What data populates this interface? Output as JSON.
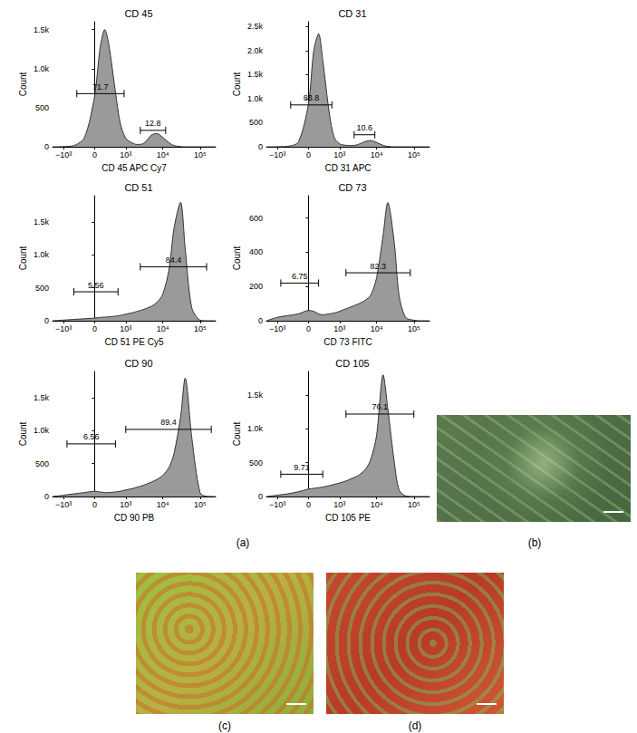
{
  "chart_data": [
    {
      "type": "area",
      "title": "CD 45",
      "x_label": "CD 45 APC Cy7",
      "y_label": "Count",
      "color": "#9a9a9a",
      "grid": false,
      "x": [
        -2000,
        -1000,
        -500,
        -200,
        0,
        100,
        200,
        300,
        500,
        700,
        1000,
        1500,
        2000,
        3000,
        5000,
        7000,
        10000,
        15000,
        20000,
        30000,
        40000,
        60000,
        100000,
        150000,
        262144
      ],
      "values": [
        0,
        3,
        15,
        120,
        650,
        1250,
        1500,
        1300,
        700,
        300,
        110,
        50,
        30,
        40,
        150,
        170,
        120,
        50,
        15,
        3,
        0,
        0,
        0,
        0,
        0
      ],
      "xlim": [
        -2000,
        262144
      ],
      "xticks": [
        {
          "value": -1000,
          "label": "−10³"
        },
        0,
        {
          "value": 1000,
          "label": "10³"
        },
        {
          "value": 10000,
          "label": "10⁴"
        },
        {
          "value": 100000,
          "label": "10⁵"
        }
      ],
      "ylim": [
        0,
        1600
      ],
      "yticks": [
        0,
        500,
        {
          "value": 1000,
          "label": "1.0k"
        },
        {
          "value": 1500,
          "label": "1.5k"
        }
      ],
      "gates": [
        {
          "x_range": [
            -400,
            900
          ],
          "y": 680,
          "value": 71.7
        },
        {
          "x_range": [
            2500,
            12000
          ],
          "y": 210,
          "value": 12.8
        }
      ]
    },
    {
      "type": "area",
      "title": "CD 31",
      "x_label": "CD 31 APC",
      "y_label": "Count",
      "color": "#9a9a9a",
      "grid": false,
      "x": [
        -2000,
        -1000,
        -500,
        -200,
        0,
        100,
        200,
        300,
        500,
        700,
        1000,
        1500,
        2000,
        3000,
        5000,
        7000,
        10000,
        15000,
        20000,
        30000,
        40000,
        60000,
        100000,
        150000,
        262144
      ],
      "values": [
        0,
        2,
        10,
        100,
        900,
        2000,
        2350,
        1800,
        700,
        200,
        60,
        30,
        25,
        40,
        110,
        130,
        90,
        30,
        8,
        0,
        0,
        0,
        0,
        0,
        0
      ],
      "xlim": [
        -2000,
        262144
      ],
      "xticks": [
        {
          "value": -1000,
          "label": "−10³"
        },
        0,
        {
          "value": 1000,
          "label": "10³"
        },
        {
          "value": 10000,
          "label": "10⁴"
        },
        {
          "value": 100000,
          "label": "10⁵"
        }
      ],
      "ylim": [
        0,
        2600
      ],
      "yticks": [
        0,
        500,
        {
          "value": 1000,
          "label": "1.0k"
        },
        {
          "value": 1500,
          "label": "1.5k"
        },
        {
          "value": 2000,
          "label": "2.0k"
        },
        {
          "value": 2500,
          "label": "2.5k"
        }
      ],
      "gates": [
        {
          "x_range": [
            -400,
            600
          ],
          "y": 870,
          "value": 83.8
        },
        {
          "x_range": [
            2500,
            9000
          ],
          "y": 250,
          "value": 10.6
        }
      ]
    },
    {
      "type": "area",
      "title": "CD 51",
      "x_label": "CD 51 PE Cy5",
      "y_label": "Count",
      "color": "#9a9a9a",
      "grid": false,
      "x": [
        -2000,
        -1000,
        -500,
        -200,
        0,
        100,
        200,
        300,
        500,
        700,
        1000,
        1500,
        2000,
        3000,
        5000,
        7000,
        10000,
        15000,
        20000,
        30000,
        40000,
        60000,
        100000,
        150000,
        262144
      ],
      "values": [
        0,
        10,
        20,
        30,
        40,
        50,
        55,
        60,
        70,
        80,
        100,
        120,
        140,
        170,
        220,
        280,
        400,
        800,
        1400,
        1800,
        1100,
        200,
        10,
        0,
        0
      ],
      "xlim": [
        -2000,
        262144
      ],
      "xticks": [
        {
          "value": -1000,
          "label": "−10³"
        },
        0,
        {
          "value": 1000,
          "label": "10³"
        },
        {
          "value": 10000,
          "label": "10⁴"
        },
        {
          "value": 100000,
          "label": "10⁵"
        }
      ],
      "ylim": [
        0,
        1900
      ],
      "yticks": [
        0,
        500,
        {
          "value": 1000,
          "label": "1.0k"
        },
        {
          "value": 1500,
          "label": "1.5k"
        }
      ],
      "gates": [
        {
          "x_range": [
            2500,
            150000
          ],
          "y": 820,
          "value": 84.4
        },
        {
          "x_range": [
            -500,
            600
          ],
          "y": 440,
          "value": 5.56
        }
      ]
    },
    {
      "type": "area",
      "title": "CD 73",
      "x_label": "CD 73 FITC",
      "y_label": "Count",
      "color": "#9a9a9a",
      "grid": false,
      "x": [
        -2000,
        -1000,
        -500,
        -200,
        0,
        100,
        200,
        300,
        500,
        700,
        1000,
        1500,
        2000,
        3000,
        5000,
        7000,
        10000,
        15000,
        20000,
        30000,
        40000,
        60000,
        100000,
        150000,
        262144
      ],
      "values": [
        0,
        20,
        30,
        40,
        60,
        55,
        40,
        35,
        40,
        45,
        55,
        70,
        80,
        95,
        120,
        150,
        250,
        500,
        690,
        450,
        150,
        20,
        3,
        0,
        0
      ],
      "xlim": [
        -2000,
        262144
      ],
      "xticks": [
        {
          "value": -1000,
          "label": "−10³"
        },
        0,
        {
          "value": 1000,
          "label": "10³"
        },
        {
          "value": 10000,
          "label": "10⁴"
        },
        {
          "value": 100000,
          "label": "10⁵"
        }
      ],
      "ylim": [
        0,
        730
      ],
      "yticks": [
        0,
        200,
        400,
        600
      ],
      "gates": [
        {
          "x_range": [
            1500,
            80000
          ],
          "y": 280,
          "value": 82.3
        },
        {
          "x_range": [
            -800,
            200
          ],
          "y": 220,
          "value": 6.75
        }
      ]
    },
    {
      "type": "area",
      "title": "CD 90",
      "x_label": "CD 90 PB",
      "y_label": "Count",
      "color": "#9a9a9a",
      "grid": false,
      "x": [
        -2000,
        -1000,
        -500,
        -200,
        0,
        100,
        200,
        300,
        500,
        700,
        1000,
        1500,
        2000,
        3000,
        5000,
        7000,
        10000,
        15000,
        20000,
        30000,
        40000,
        60000,
        100000,
        150000,
        262144
      ],
      "values": [
        0,
        20,
        40,
        60,
        80,
        70,
        60,
        60,
        70,
        80,
        100,
        120,
        140,
        170,
        220,
        260,
        320,
        450,
        650,
        1200,
        1800,
        900,
        60,
        2,
        0
      ],
      "xlim": [
        -2000,
        262144
      ],
      "xticks": [
        {
          "value": -1000,
          "label": "−10³"
        },
        0,
        {
          "value": 1000,
          "label": "10³"
        },
        {
          "value": 10000,
          "label": "10⁴"
        },
        {
          "value": 100000,
          "label": "10⁵"
        }
      ],
      "ylim": [
        0,
        1900
      ],
      "yticks": [
        0,
        500,
        {
          "value": 1000,
          "label": "1.0k"
        },
        {
          "value": 1500,
          "label": "1.5k"
        }
      ],
      "gates": [
        {
          "x_range": [
            1000,
            200000
          ],
          "y": 1020,
          "value": 89.4
        },
        {
          "x_range": [
            -800,
            500
          ],
          "y": 800,
          "value": 6.56
        }
      ]
    },
    {
      "type": "area",
      "title": "CD 105",
      "x_label": "CD 105 PE",
      "y_label": "Count",
      "color": "#9a9a9a",
      "grid": false,
      "x": [
        -2000,
        -1000,
        -500,
        -200,
        0,
        100,
        200,
        300,
        500,
        700,
        1000,
        1500,
        2000,
        3000,
        5000,
        7000,
        10000,
        15000,
        20000,
        30000,
        40000,
        60000,
        100000,
        150000,
        262144
      ],
      "values": [
        0,
        20,
        40,
        70,
        110,
        120,
        130,
        140,
        160,
        180,
        200,
        230,
        260,
        300,
        400,
        550,
        900,
        1800,
        1300,
        500,
        100,
        10,
        0,
        0,
        0
      ],
      "xlim": [
        -2000,
        262144
      ],
      "xticks": [
        {
          "value": -1000,
          "label": "−10³"
        },
        0,
        {
          "value": 1000,
          "label": "10³"
        },
        {
          "value": 10000,
          "label": "10⁴"
        },
        {
          "value": 100000,
          "label": "10⁵"
        }
      ],
      "ylim": [
        0,
        1850
      ],
      "yticks": [
        0,
        500,
        {
          "value": 1000,
          "label": "1.0k"
        },
        {
          "value": 1500,
          "label": "1.5k"
        }
      ],
      "gates": [
        {
          "x_range": [
            1500,
            100000
          ],
          "y": 1220,
          "value": 76.1
        },
        {
          "x_range": [
            -800,
            300
          ],
          "y": 330,
          "value": 9.71
        }
      ]
    }
  ],
  "panel_labels": [
    "(a)",
    "(b)",
    "(c)",
    "(d)"
  ]
}
